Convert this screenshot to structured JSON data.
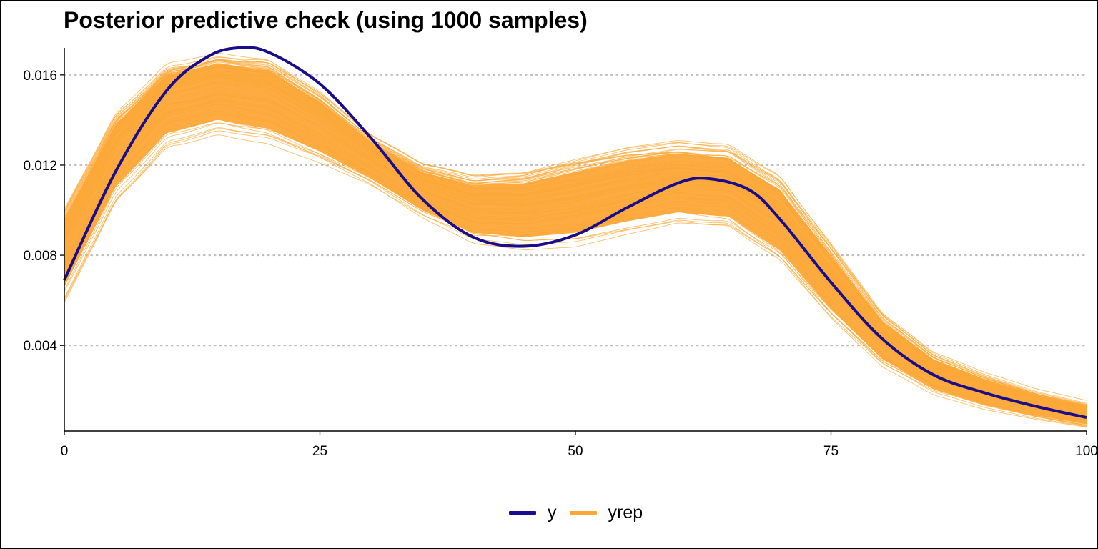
{
  "chart_data": {
    "type": "line",
    "title": "Posterior predictive check (using 1000 samples)",
    "xlabel": "",
    "ylabel": "",
    "xlim": [
      0,
      100
    ],
    "ylim": [
      0.0002,
      0.0172
    ],
    "x_ticks": [
      0,
      25,
      50,
      75,
      100
    ],
    "x_tick_labels": [
      "0",
      "25",
      "50",
      "75",
      "100"
    ],
    "y_ticks": [
      0.004,
      0.008,
      0.012,
      0.016
    ],
    "y_tick_labels": [
      "0.004",
      "0.008",
      "0.012",
      "0.016"
    ],
    "grid": "horizontal dotted",
    "legend_position": "bottom",
    "series": [
      {
        "name": "y",
        "color": "#1a0d8c",
        "x": [
          0,
          5,
          10,
          14,
          17,
          20,
          25,
          30,
          35,
          40,
          45,
          50,
          55,
          60,
          63,
          67,
          70,
          75,
          80,
          85,
          90,
          95,
          100
        ],
        "values": [
          0.0069,
          0.0117,
          0.0153,
          0.0168,
          0.0172,
          0.017,
          0.0156,
          0.0132,
          0.0105,
          0.0088,
          0.0084,
          0.0089,
          0.0101,
          0.0112,
          0.0114,
          0.0109,
          0.0096,
          0.0068,
          0.0043,
          0.0027,
          0.0019,
          0.0013,
          0.0008
        ]
      },
      {
        "name": "yrep",
        "color": "#fca838",
        "x": [
          0,
          5,
          10,
          15,
          20,
          25,
          30,
          35,
          40,
          45,
          50,
          55,
          60,
          65,
          70,
          75,
          80,
          85,
          90,
          95,
          100
        ],
        "lower": [
          0.0066,
          0.011,
          0.0134,
          0.014,
          0.0136,
          0.0126,
          0.0114,
          0.01,
          0.009,
          0.0088,
          0.009,
          0.0095,
          0.0099,
          0.0097,
          0.0082,
          0.0056,
          0.0034,
          0.0021,
          0.0014,
          0.0009,
          0.0005
        ],
        "upper": [
          0.0096,
          0.0138,
          0.016,
          0.0165,
          0.0162,
          0.0148,
          0.013,
          0.0117,
          0.0111,
          0.0112,
          0.0117,
          0.0122,
          0.0125,
          0.0123,
          0.0109,
          0.008,
          0.0051,
          0.0034,
          0.0025,
          0.0018,
          0.0013
        ]
      }
    ]
  },
  "legend": {
    "items": [
      {
        "label": "y",
        "color": "#1a0d8c"
      },
      {
        "label": "yrep",
        "color": "#fca838"
      }
    ]
  }
}
